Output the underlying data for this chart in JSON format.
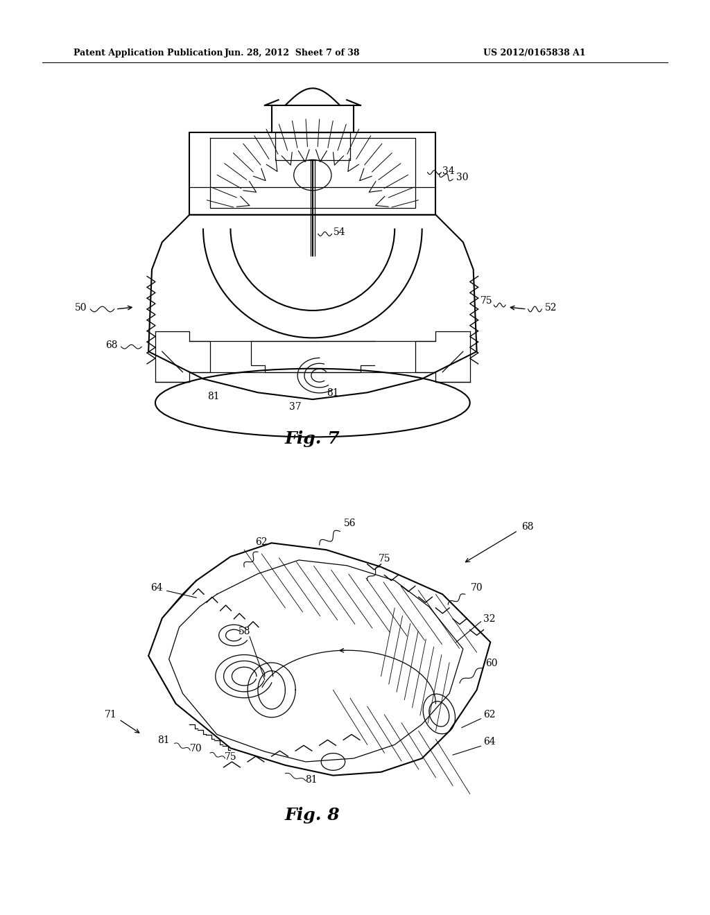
{
  "header_left": "Patent Application Publication",
  "header_middle": "Jun. 28, 2012  Sheet 7 of 38",
  "header_right": "US 2012/0165838 A1",
  "fig7_caption": "Fig. 7",
  "fig8_caption": "Fig. 8",
  "bg_color": "#ffffff",
  "line_color": "#000000"
}
